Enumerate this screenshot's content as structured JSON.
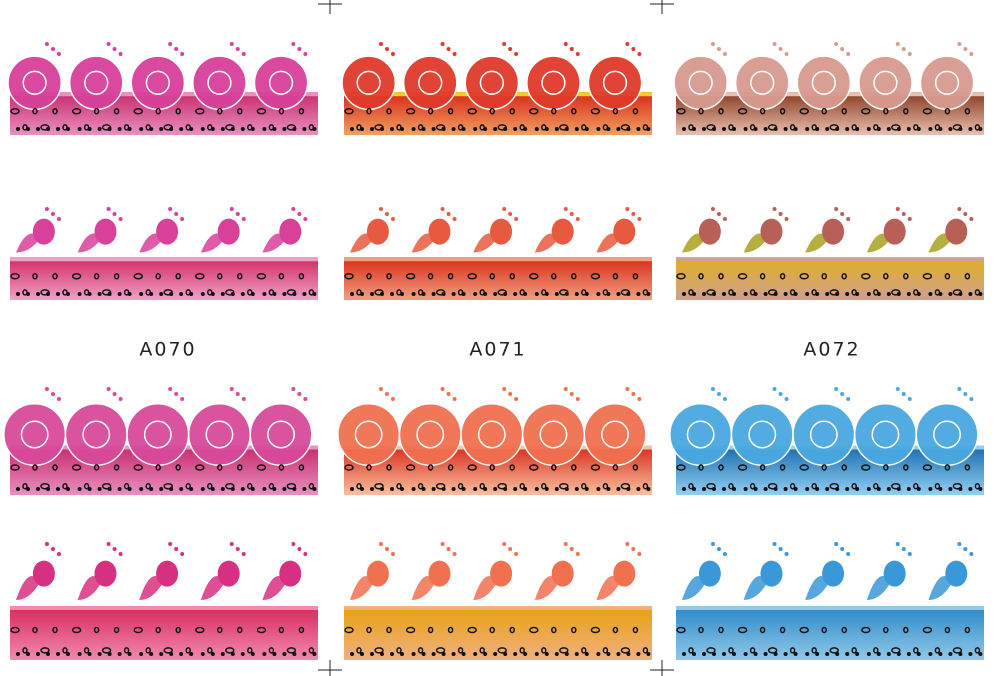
{
  "labels": [
    "A070",
    "A071",
    "A072"
  ]
}
